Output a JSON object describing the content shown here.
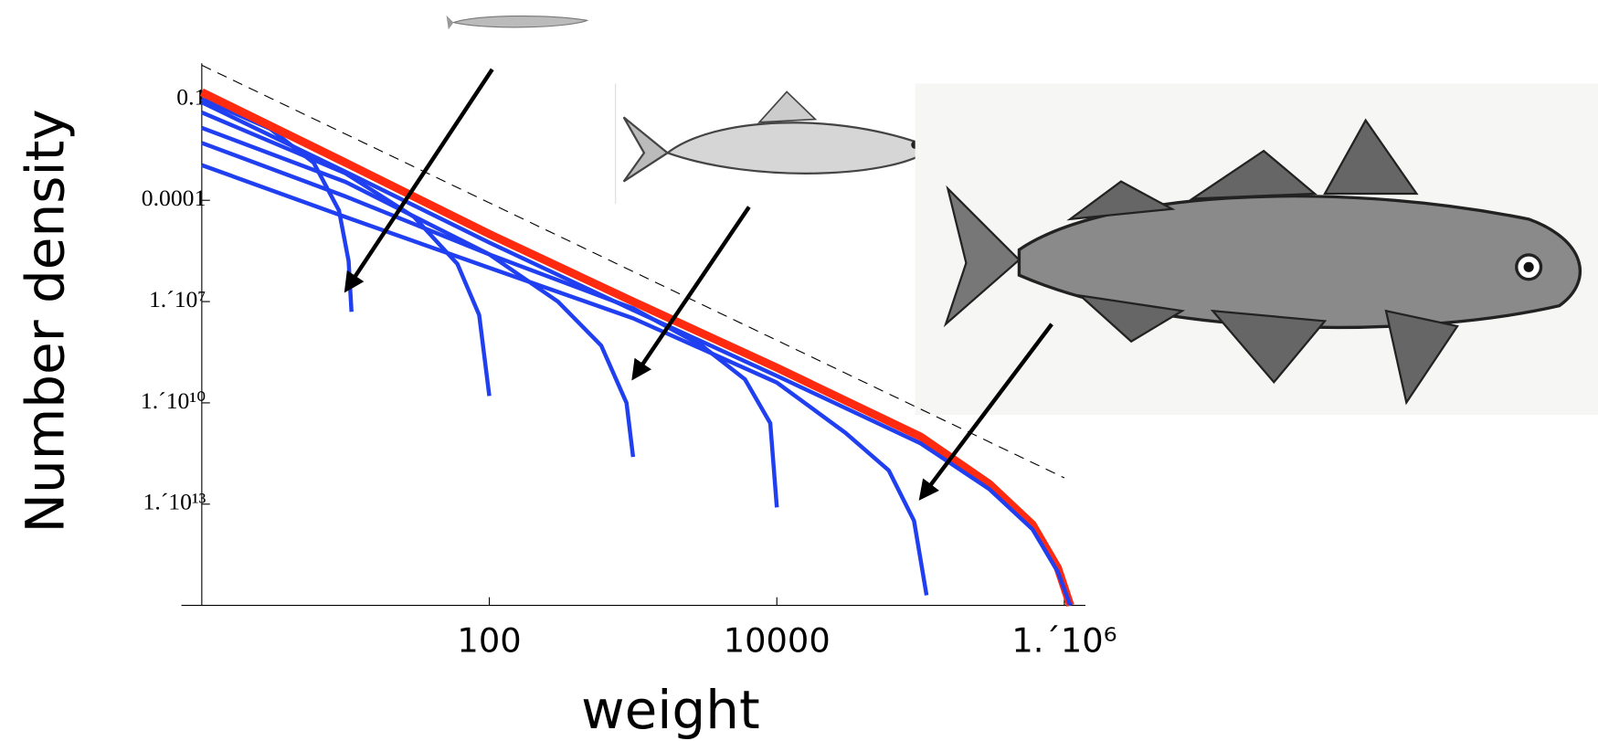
{
  "chart_data": {
    "type": "line",
    "xlabel": "weight",
    "ylabel": "Number density",
    "xscale": "log",
    "yscale": "log",
    "xlim": [
      1,
      1400000
    ],
    "ylim": [
      1e-16,
      1
    ],
    "xticks": [
      100,
      10000,
      {
        "value": 1000000,
        "label": "1.´10⁶"
      }
    ],
    "yticks": [
      0.1,
      0.0001,
      {
        "value": 1e-07,
        "label": "1.´10⁷"
      },
      {
        "value": 1e-10,
        "label": "1.´10¹⁰"
      },
      {
        "value": 1e-13,
        "label": "1.´10¹³"
      }
    ],
    "series": [
      {
        "color": "#000000",
        "style": "dashed",
        "width": 1,
        "x": [
          1,
          1000000
        ],
        "values": [
          1,
          6e-13
        ]
      },
      {
        "color": "#1f3ff0",
        "width": 4,
        "x": [
          1,
          3,
          6,
          9,
          10.5,
          11
        ],
        "values": [
          0.1,
          0.013,
          0.0013,
          5e-05,
          1.6e-06,
          5e-08
        ]
      },
      {
        "color": "#1f3ff0",
        "width": 4,
        "x": [
          1,
          10,
          30,
          60,
          85,
          100
        ],
        "values": [
          0.04,
          0.00063,
          3.2e-05,
          1.3e-06,
          4e-08,
          1.6e-10
        ]
      },
      {
        "color": "#1f3ff0",
        "width": 4,
        "x": [
          1,
          10,
          100,
          300,
          600,
          900,
          1000
        ],
        "values": [
          0.014,
          0.00035,
          2.5e-06,
          1e-07,
          5e-09,
          1e-10,
          2.5e-12
        ]
      },
      {
        "color": "#1f3ff0",
        "width": 4,
        "x": [
          1,
          10,
          100,
          1000,
          3000,
          6000,
          9000,
          10000
        ],
        "values": [
          0.005,
          0.00013,
          2.5e-06,
          6.3e-08,
          5e-09,
          5e-10,
          2.5e-11,
          8e-14
        ]
      },
      {
        "color": "#1f3ff0",
        "width": 4,
        "x": [
          1,
          10,
          100,
          1000,
          10000,
          30000,
          60000,
          90000,
          110000
        ],
        "values": [
          0.0011,
          3.2e-05,
          1e-06,
          3.2e-08,
          4e-10,
          1.3e-11,
          1e-12,
          3.2e-14,
          2e-16
        ]
      },
      {
        "color": "#ff2a10",
        "width": 8,
        "x": [
          1,
          10,
          100,
          1000,
          10000,
          100000,
          300000,
          600000,
          900000,
          1100000
        ],
        "values": [
          0.16,
          0.0013,
          1e-05,
          1e-07,
          1.1e-09,
          1e-11,
          4e-13,
          2.5e-14,
          1.3e-15,
          1e-16
        ]
      },
      {
        "color": "#1f3ff0",
        "width": 4,
        "x": [
          1,
          10,
          100,
          1000,
          10000,
          100000,
          300000,
          600000,
          900000,
          1100000
        ],
        "values": [
          0.08,
          0.0007,
          5.6e-06,
          5.6e-08,
          6.3e-10,
          6.3e-12,
          2.8e-13,
          1.8e-14,
          1e-15,
          1e-16
        ]
      }
    ]
  }
}
